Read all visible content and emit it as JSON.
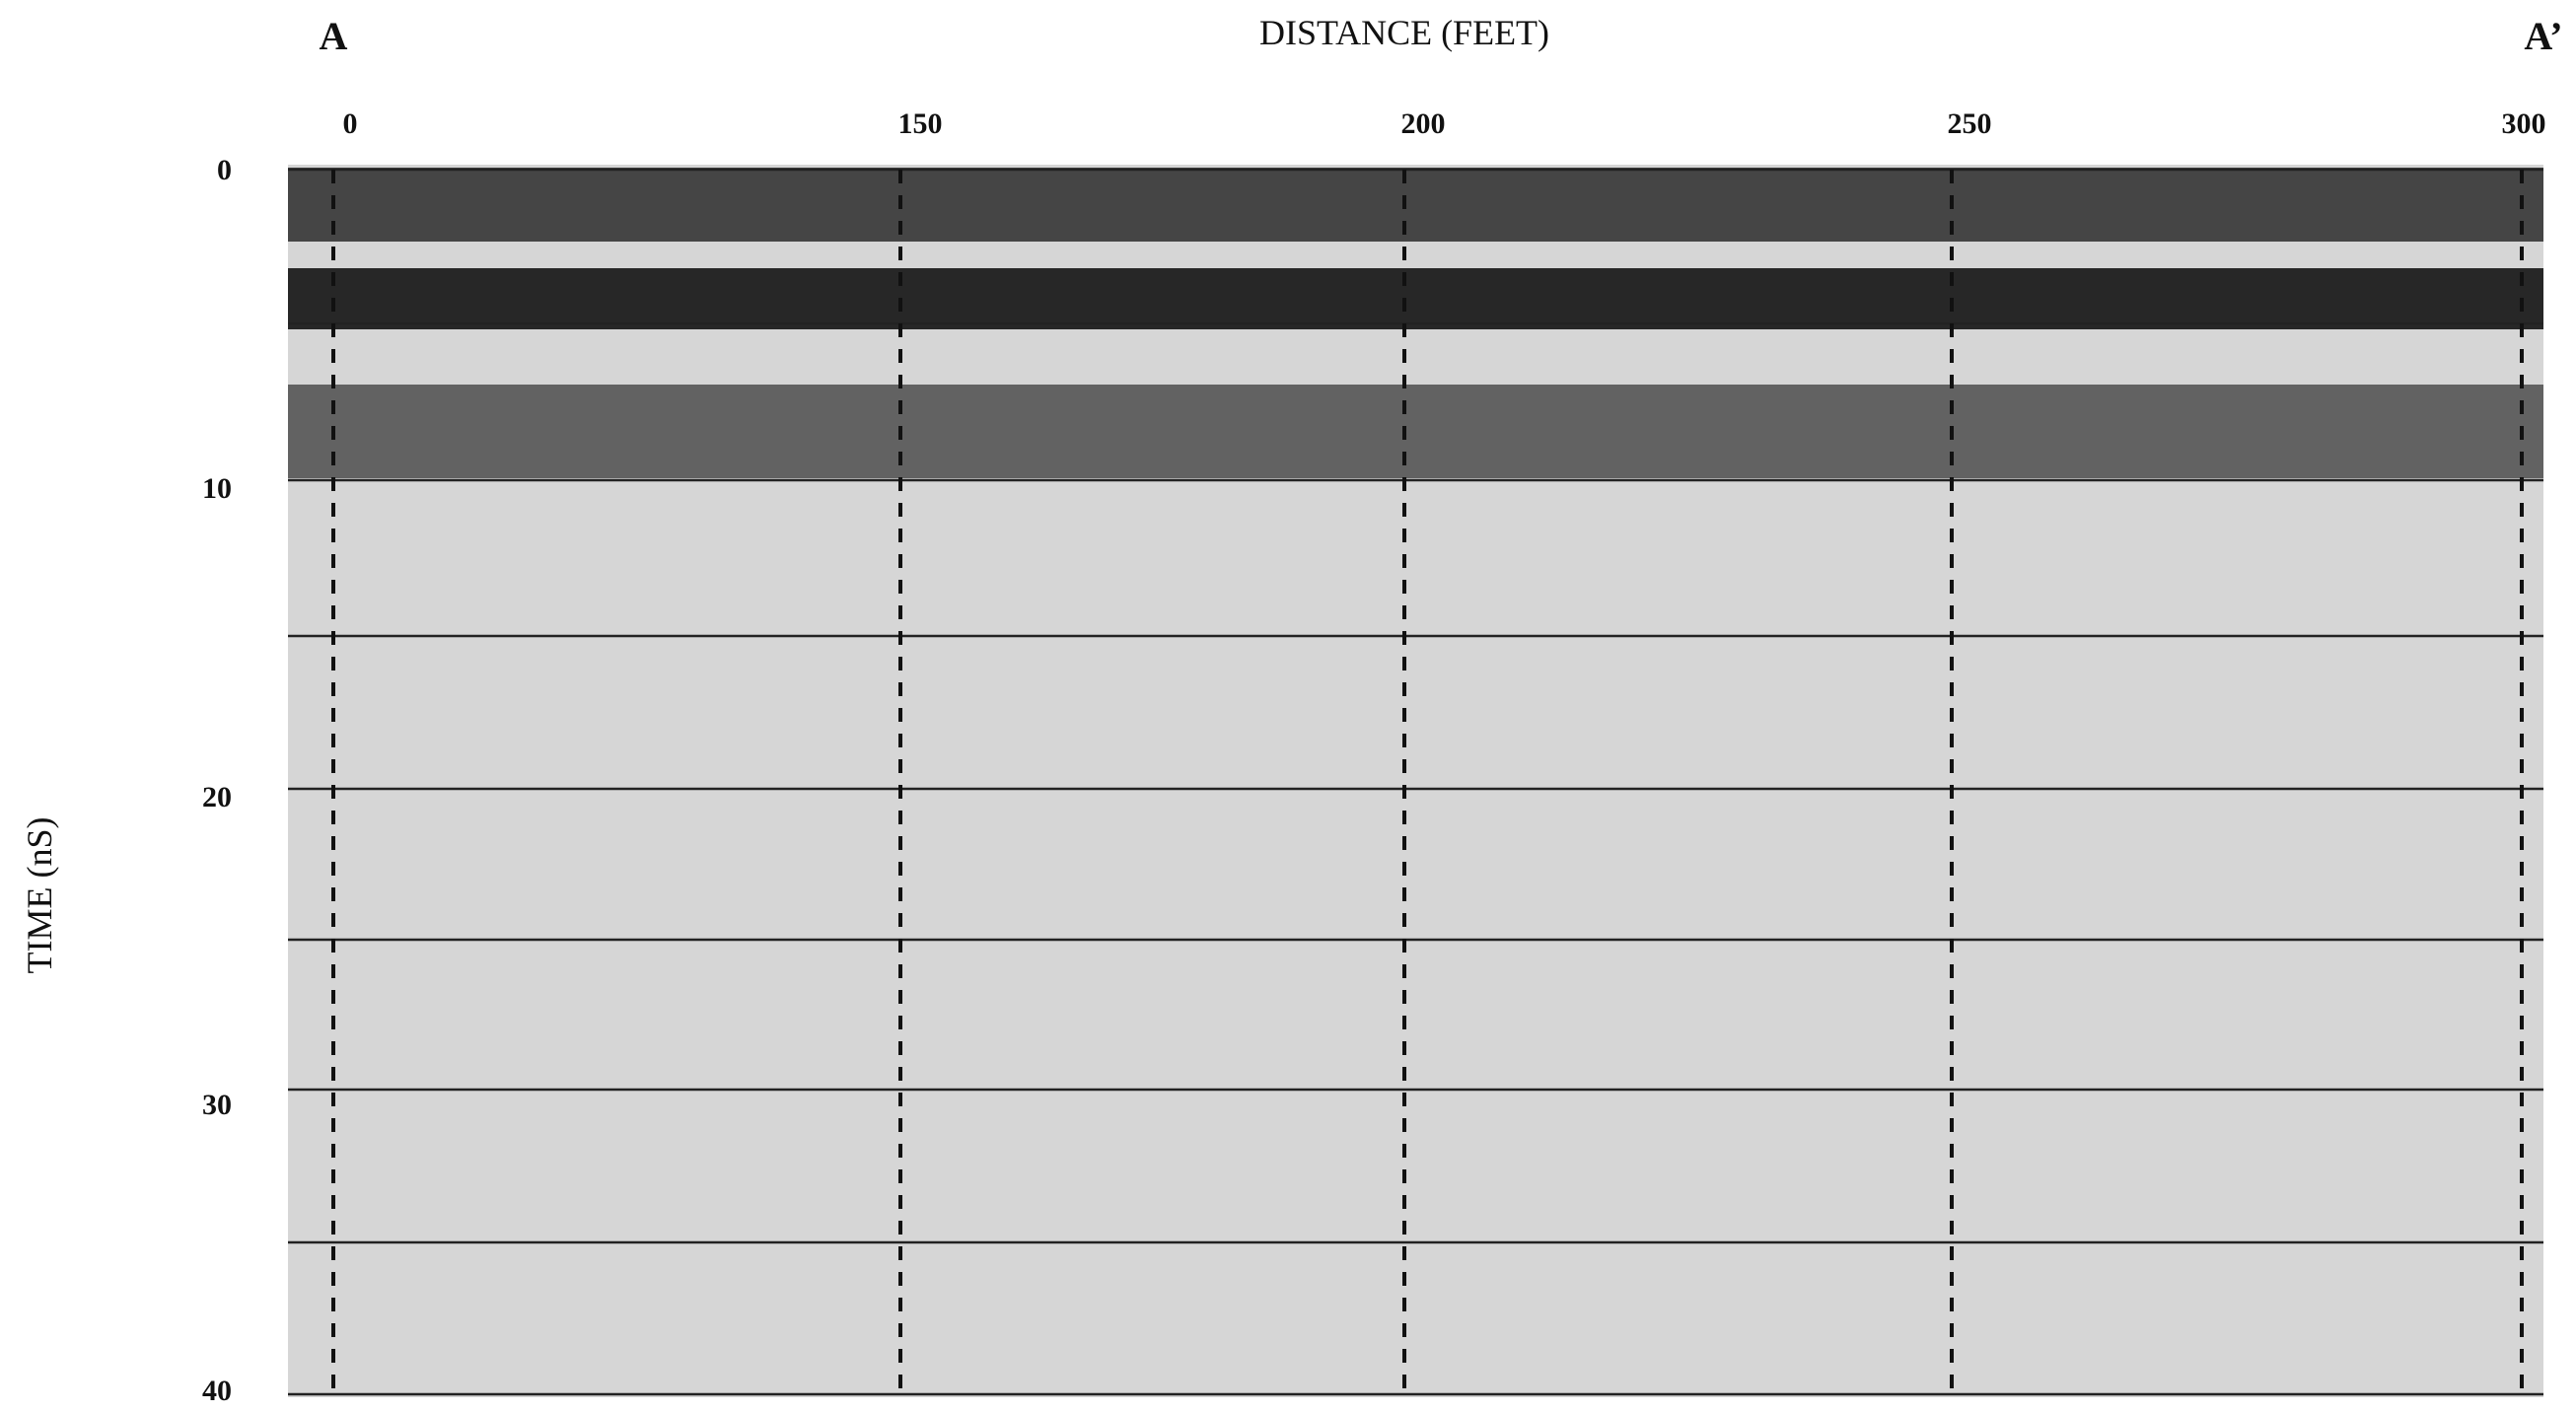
{
  "header": {
    "left_marker": "A",
    "title": "DISTANCE (FEET)",
    "right_marker": "A’"
  },
  "x_axis": {
    "ticks": [
      "0",
      "150",
      "200",
      "250",
      "300"
    ]
  },
  "y_axis": {
    "label": "TIME (nS)",
    "ticks": [
      "0",
      "10",
      "20",
      "30",
      "40"
    ]
  }
}
